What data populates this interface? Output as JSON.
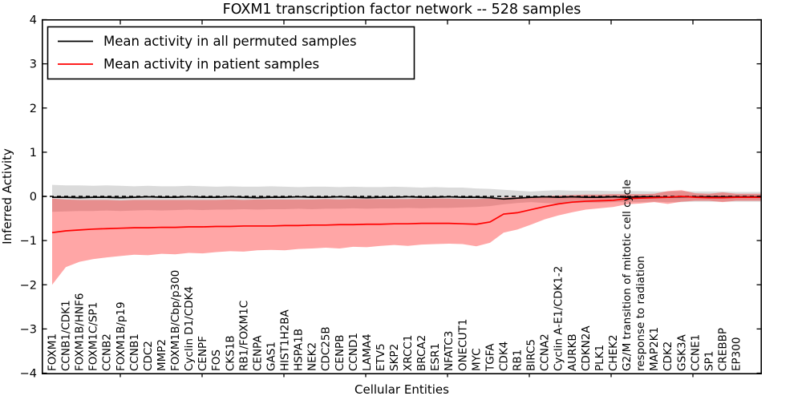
{
  "chart_data": {
    "type": "line",
    "title": "FOXM1 transcription factor network -- 528 samples",
    "xlabel": "Cellular Entities",
    "ylabel": "Inferred Activity",
    "ylim": [
      -4,
      4
    ],
    "yticks": [
      -4,
      -3,
      -2,
      -1,
      0,
      1,
      2,
      3,
      4
    ],
    "grid": false,
    "legend_position": "upper left",
    "zero_line": {
      "y": 0,
      "style": "dashed",
      "color": "#000000"
    },
    "categories": [
      "FOXM1",
      "CCNB1/CDK1",
      "FOXM1B/HNF6",
      "FOXM1C/SP1",
      "CCNB2",
      "FOXM1B/p19",
      "CCNB1",
      "CDC2",
      "MMP2",
      "FOXM1B/Cbp/p300",
      "Cyclin D1/CDK4",
      "CENPF",
      "FOS",
      "CKS1B",
      "RB1/FOXM1C",
      "CENPA",
      "GAS1",
      "HIST1H2BA",
      "HSPA1B",
      "NEK2",
      "CDC25B",
      "CENPB",
      "CCND1",
      "LAMA4",
      "ETV5",
      "SKP2",
      "XRCC1",
      "BRCA2",
      "ESR1",
      "NFATC3",
      "ONECUT1",
      "MYC",
      "TGFA",
      "CDK4",
      "RB1",
      "BIRC5",
      "CCNA2",
      "Cyclin A-E1/CDK1-2",
      "AURKB",
      "CDKN2A",
      "PLK1",
      "CHEK2",
      "G2/M transition of mitotic cell cycle",
      "response to radiation",
      "MAP2K1",
      "CDK2",
      "GSK3A",
      "CCNE1",
      "SP1",
      "CREBBP",
      "EP300"
    ],
    "series": [
      {
        "name": "Mean activity in all permuted samples",
        "color": "#000000",
        "band_opacity": 0.14,
        "values": [
          -0.02,
          -0.02,
          -0.03,
          -0.02,
          -0.02,
          -0.03,
          -0.02,
          -0.01,
          -0.02,
          -0.02,
          -0.01,
          -0.02,
          -0.02,
          -0.01,
          -0.02,
          -0.03,
          -0.02,
          -0.02,
          -0.01,
          -0.02,
          -0.02,
          -0.01,
          -0.02,
          -0.03,
          -0.02,
          -0.02,
          -0.01,
          -0.02,
          -0.02,
          -0.01,
          -0.02,
          -0.02,
          -0.03,
          -0.06,
          -0.04,
          -0.02,
          -0.01,
          -0.02,
          -0.01,
          -0.02,
          -0.02,
          -0.01,
          -0.02,
          -0.01,
          -0.01,
          -0.02,
          -0.01,
          -0.01,
          -0.01,
          -0.01,
          -0.01
        ],
        "band_upper": [
          0.26,
          0.25,
          0.25,
          0.24,
          0.25,
          0.24,
          0.23,
          0.24,
          0.23,
          0.23,
          0.24,
          0.23,
          0.22,
          0.23,
          0.22,
          0.22,
          0.23,
          0.22,
          0.21,
          0.22,
          0.22,
          0.21,
          0.22,
          0.21,
          0.21,
          0.22,
          0.21,
          0.2,
          0.21,
          0.2,
          0.2,
          0.18,
          0.17,
          0.15,
          0.13,
          0.11,
          0.13,
          0.14,
          0.13,
          0.13,
          0.13,
          0.12,
          0.12,
          0.12,
          0.11,
          0.11,
          0.12,
          0.11,
          0.11,
          0.11,
          0.1
        ],
        "band_lower": [
          -0.35,
          -0.34,
          -0.33,
          -0.33,
          -0.32,
          -0.33,
          -0.32,
          -0.31,
          -0.32,
          -0.31,
          -0.3,
          -0.31,
          -0.3,
          -0.3,
          -0.29,
          -0.3,
          -0.29,
          -0.29,
          -0.28,
          -0.29,
          -0.28,
          -0.28,
          -0.27,
          -0.28,
          -0.27,
          -0.27,
          -0.26,
          -0.27,
          -0.26,
          -0.26,
          -0.25,
          -0.24,
          -0.22,
          -0.18,
          -0.15,
          -0.13,
          -0.15,
          -0.16,
          -0.15,
          -0.14,
          -0.14,
          -0.13,
          -0.13,
          -0.13,
          -0.12,
          -0.13,
          -0.13,
          -0.12,
          -0.12,
          -0.12,
          -0.12
        ]
      },
      {
        "name": "Mean activity in patient samples",
        "color": "#ff0000",
        "band_opacity": 0.35,
        "values": [
          -0.82,
          -0.78,
          -0.76,
          -0.74,
          -0.73,
          -0.72,
          -0.71,
          -0.71,
          -0.7,
          -0.7,
          -0.69,
          -0.69,
          -0.68,
          -0.68,
          -0.67,
          -0.67,
          -0.67,
          -0.66,
          -0.66,
          -0.65,
          -0.65,
          -0.64,
          -0.64,
          -0.63,
          -0.63,
          -0.62,
          -0.62,
          -0.61,
          -0.61,
          -0.61,
          -0.62,
          -0.63,
          -0.58,
          -0.4,
          -0.37,
          -0.3,
          -0.23,
          -0.17,
          -0.13,
          -0.11,
          -0.1,
          -0.09,
          -0.05,
          -0.04,
          -0.03,
          -0.02,
          0.0,
          -0.02,
          -0.03,
          -0.03,
          -0.02
        ],
        "band_upper": [
          -0.05,
          -0.07,
          -0.08,
          -0.08,
          -0.08,
          -0.09,
          -0.08,
          -0.08,
          -0.08,
          -0.08,
          -0.08,
          -0.08,
          -0.08,
          -0.07,
          -0.08,
          -0.07,
          -0.07,
          -0.07,
          -0.07,
          -0.07,
          -0.06,
          -0.07,
          -0.06,
          -0.06,
          -0.06,
          -0.06,
          -0.06,
          -0.05,
          -0.05,
          -0.05,
          -0.06,
          -0.06,
          -0.05,
          -0.03,
          -0.02,
          -0.01,
          0.01,
          0.02,
          0.03,
          0.04,
          0.04,
          0.05,
          0.05,
          0.05,
          0.06,
          0.12,
          0.14,
          0.07,
          0.06,
          0.09,
          0.06
        ],
        "band_lower": [
          -2.0,
          -1.6,
          -1.48,
          -1.42,
          -1.38,
          -1.35,
          -1.32,
          -1.33,
          -1.3,
          -1.31,
          -1.28,
          -1.29,
          -1.26,
          -1.24,
          -1.25,
          -1.22,
          -1.21,
          -1.22,
          -1.19,
          -1.18,
          -1.16,
          -1.18,
          -1.14,
          -1.15,
          -1.12,
          -1.1,
          -1.12,
          -1.09,
          -1.08,
          -1.07,
          -1.08,
          -1.13,
          -1.05,
          -0.82,
          -0.75,
          -0.64,
          -0.52,
          -0.43,
          -0.36,
          -0.3,
          -0.27,
          -0.24,
          -0.18,
          -0.16,
          -0.13,
          -0.17,
          -0.12,
          -0.1,
          -0.1,
          -0.13,
          -0.1
        ]
      }
    ]
  }
}
